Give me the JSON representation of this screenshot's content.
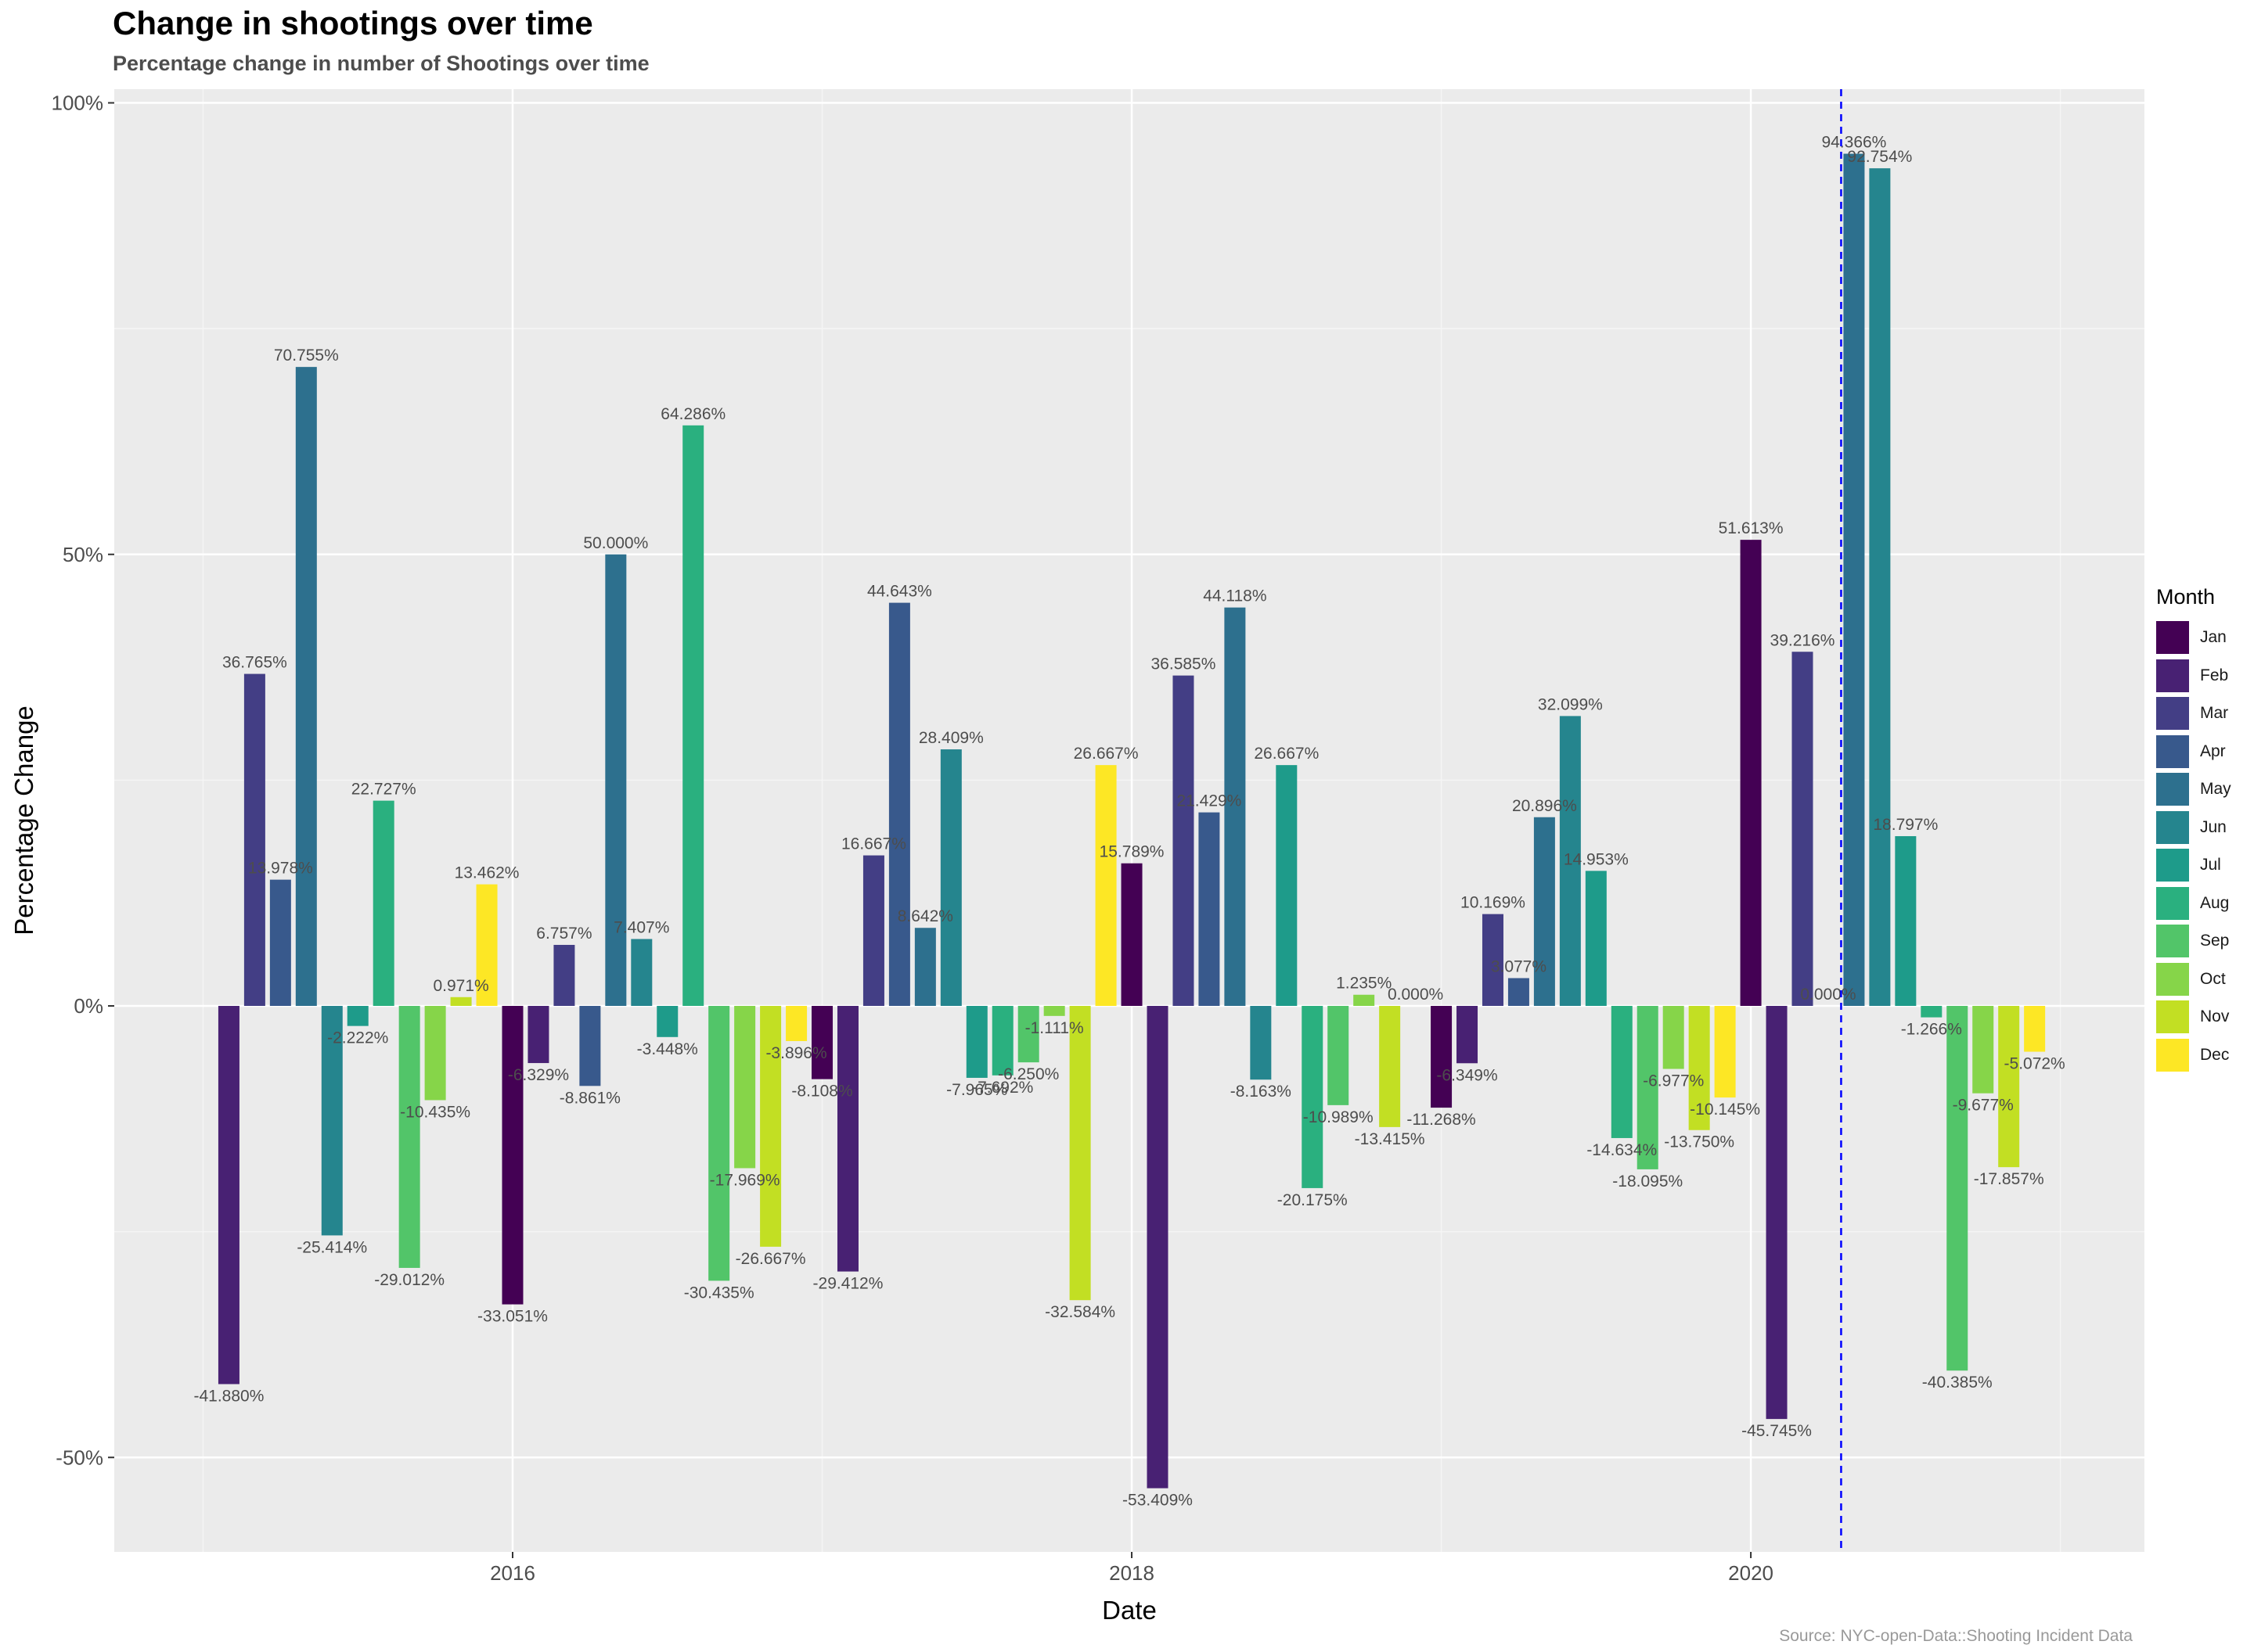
{
  "chart_data": {
    "type": "bar",
    "title": "Change in shootings over time",
    "subtitle": "Percentage change in number of Shootings over time",
    "xlabel": "Date",
    "ylabel": "Percentage Change",
    "caption": "Source: NYC-open-Data::Shooting Incident Data",
    "ylim": [
      -60,
      100
    ],
    "y_ticks": [
      {
        "value": 100,
        "label": "100%"
      },
      {
        "value": 50,
        "label": "50%"
      },
      {
        "value": 0,
        "label": "0%"
      },
      {
        "value": -50,
        "label": "-50%"
      }
    ],
    "x_ticks": [
      {
        "value": "2016-01",
        "label": "2016"
      },
      {
        "value": "2018-01",
        "label": "2018"
      },
      {
        "value": "2020-01",
        "label": "2020"
      }
    ],
    "reference_line": {
      "date": "2020-04",
      "color": "#0000ff",
      "style": "dashed"
    },
    "grid": true,
    "legend": {
      "title": "Month",
      "position": "right",
      "entries": [
        {
          "label": "Jan",
          "color": "#440154"
        },
        {
          "label": "Feb",
          "color": "#482173"
        },
        {
          "label": "Mar",
          "color": "#433e85"
        },
        {
          "label": "Apr",
          "color": "#38598c"
        },
        {
          "label": "May",
          "color": "#2d708e"
        },
        {
          "label": "Jun",
          "color": "#25858e"
        },
        {
          "label": "Jul",
          "color": "#1e9b8a"
        },
        {
          "label": "Aug",
          "color": "#2ab07f"
        },
        {
          "label": "Sep",
          "color": "#52c569"
        },
        {
          "label": "Oct",
          "color": "#86d549"
        },
        {
          "label": "Nov",
          "color": "#c2df23"
        },
        {
          "label": "Dec",
          "color": "#fde725"
        }
      ]
    },
    "data": [
      {
        "date": "2015-02",
        "month": 2,
        "value": -41.88,
        "label": "-41.880%"
      },
      {
        "date": "2015-03",
        "month": 3,
        "value": 36.765,
        "label": "36.765%"
      },
      {
        "date": "2015-04",
        "month": 4,
        "value": 13.978,
        "label": "13.978%"
      },
      {
        "date": "2015-05",
        "month": 5,
        "value": 70.755,
        "label": "70.755%"
      },
      {
        "date": "2015-06",
        "month": 6,
        "value": -25.414,
        "label": "-25.414%"
      },
      {
        "date": "2015-07",
        "month": 7,
        "value": -2.222,
        "label": "-2.222%"
      },
      {
        "date": "2015-08",
        "month": 8,
        "value": 22.727,
        "label": "22.727%"
      },
      {
        "date": "2015-09",
        "month": 9,
        "value": -29.012,
        "label": "-29.012%"
      },
      {
        "date": "2015-10",
        "month": 10,
        "value": -10.435,
        "label": "-10.435%"
      },
      {
        "date": "2015-11",
        "month": 11,
        "value": 0.971,
        "label": "0.971%"
      },
      {
        "date": "2015-12",
        "month": 12,
        "value": 13.462,
        "label": "13.462%"
      },
      {
        "date": "2016-01",
        "month": 1,
        "value": -33.051,
        "label": "-33.051%"
      },
      {
        "date": "2016-02",
        "month": 2,
        "value": -6.329,
        "label": "-6.329%"
      },
      {
        "date": "2016-03",
        "month": 3,
        "value": 6.757,
        "label": "6.757%"
      },
      {
        "date": "2016-04",
        "month": 4,
        "value": -8.861,
        "label": "-8.861%"
      },
      {
        "date": "2016-05",
        "month": 5,
        "value": 50.0,
        "label": "50.000%"
      },
      {
        "date": "2016-06",
        "month": 6,
        "value": 7.407,
        "label": "7.407%"
      },
      {
        "date": "2016-07",
        "month": 7,
        "value": -3.448,
        "label": "-3.448%"
      },
      {
        "date": "2016-08",
        "month": 8,
        "value": 64.286,
        "label": "64.286%"
      },
      {
        "date": "2016-09",
        "month": 9,
        "value": -30.435,
        "label": "-30.435%"
      },
      {
        "date": "2016-10",
        "month": 10,
        "value": -17.969,
        "label": "-17.969%"
      },
      {
        "date": "2016-11",
        "month": 11,
        "value": -26.667,
        "label": "-26.667%"
      },
      {
        "date": "2016-12",
        "month": 12,
        "value": -3.896,
        "label": "-3.896%"
      },
      {
        "date": "2017-01",
        "month": 1,
        "value": -8.108,
        "label": "-8.108%"
      },
      {
        "date": "2017-02",
        "month": 2,
        "value": -29.412,
        "label": "-29.412%"
      },
      {
        "date": "2017-03",
        "month": 3,
        "value": 16.667,
        "label": "16.667%"
      },
      {
        "date": "2017-04",
        "month": 4,
        "value": 44.643,
        "label": "44.643%"
      },
      {
        "date": "2017-05",
        "month": 5,
        "value": 8.642,
        "label": "8.642%"
      },
      {
        "date": "2017-06",
        "month": 6,
        "value": 28.409,
        "label": "28.409%"
      },
      {
        "date": "2017-07",
        "month": 7,
        "value": -7.965,
        "label": "-7.965%"
      },
      {
        "date": "2017-08",
        "month": 8,
        "value": -7.692,
        "label": "-7.692%"
      },
      {
        "date": "2017-09",
        "month": 9,
        "value": -6.25,
        "label": "-6.250%"
      },
      {
        "date": "2017-10",
        "month": 10,
        "value": -1.111,
        "label": "-1.111%"
      },
      {
        "date": "2017-11",
        "month": 11,
        "value": -32.584,
        "label": "-32.584%"
      },
      {
        "date": "2017-12",
        "month": 12,
        "value": 26.667,
        "label": "26.667%"
      },
      {
        "date": "2018-01",
        "month": 1,
        "value": 15.789,
        "label": "15.789%"
      },
      {
        "date": "2018-02",
        "month": 2,
        "value": -53.409,
        "label": "-53.409%"
      },
      {
        "date": "2018-03",
        "month": 3,
        "value": 36.585,
        "label": "36.585%"
      },
      {
        "date": "2018-04",
        "month": 4,
        "value": 21.429,
        "label": "21.429%"
      },
      {
        "date": "2018-05",
        "month": 5,
        "value": 44.118,
        "label": "44.118%"
      },
      {
        "date": "2018-06",
        "month": 6,
        "value": -8.163,
        "label": "-8.163%"
      },
      {
        "date": "2018-07",
        "month": 7,
        "value": 26.667,
        "label": "26.667%"
      },
      {
        "date": "2018-08",
        "month": 8,
        "value": -20.175,
        "label": "-20.175%"
      },
      {
        "date": "2018-09",
        "month": 9,
        "value": -10.989,
        "label": "-10.989%"
      },
      {
        "date": "2018-10",
        "month": 10,
        "value": 1.235,
        "label": "1.235%"
      },
      {
        "date": "2018-11",
        "month": 11,
        "value": -13.415,
        "label": "-13.415%"
      },
      {
        "date": "2018-12",
        "month": 12,
        "value": 0.0,
        "label": "0.000%"
      },
      {
        "date": "2019-01",
        "month": 1,
        "value": -11.268,
        "label": "-11.268%"
      },
      {
        "date": "2019-02",
        "month": 2,
        "value": -6.349,
        "label": "-6.349%"
      },
      {
        "date": "2019-03",
        "month": 3,
        "value": 10.169,
        "label": "10.169%"
      },
      {
        "date": "2019-04",
        "month": 4,
        "value": 3.077,
        "label": "3.077%"
      },
      {
        "date": "2019-05",
        "month": 5,
        "value": 20.896,
        "label": "20.896%"
      },
      {
        "date": "2019-06",
        "month": 6,
        "value": 32.099,
        "label": "32.099%"
      },
      {
        "date": "2019-07",
        "month": 7,
        "value": 14.953,
        "label": "14.953%"
      },
      {
        "date": "2019-08",
        "month": 8,
        "value": -14.634,
        "label": "-14.634%"
      },
      {
        "date": "2019-09",
        "month": 9,
        "value": -18.095,
        "label": "-18.095%"
      },
      {
        "date": "2019-10",
        "month": 10,
        "value": -6.977,
        "label": "-6.977%"
      },
      {
        "date": "2019-11",
        "month": 11,
        "value": -13.75,
        "label": "-13.750%"
      },
      {
        "date": "2019-12",
        "month": 12,
        "value": -10.145,
        "label": "-10.145%"
      },
      {
        "date": "2020-01",
        "month": 1,
        "value": 51.613,
        "label": "51.613%"
      },
      {
        "date": "2020-02",
        "month": 2,
        "value": -45.745,
        "label": "-45.745%"
      },
      {
        "date": "2020-03",
        "month": 3,
        "value": 39.216,
        "label": "39.216%"
      },
      {
        "date": "2020-04",
        "month": 4,
        "value": 0.0,
        "label": "0.000%"
      },
      {
        "date": "2020-05",
        "month": 5,
        "value": 94.366,
        "label": "94.366%"
      },
      {
        "date": "2020-06",
        "month": 6,
        "value": 92.754,
        "label": "92.754%"
      },
      {
        "date": "2020-07",
        "month": 7,
        "value": 18.797,
        "label": "18.797%"
      },
      {
        "date": "2020-08",
        "month": 8,
        "value": -1.266,
        "label": "-1.266%"
      },
      {
        "date": "2020-09",
        "month": 9,
        "value": -40.385,
        "label": "-40.385%"
      },
      {
        "date": "2020-10",
        "month": 10,
        "value": -9.677,
        "label": "-9.677%"
      },
      {
        "date": "2020-11",
        "month": 11,
        "value": -17.857,
        "label": "-17.857%"
      },
      {
        "date": "2020-12",
        "month": 12,
        "value": -5.072,
        "label": "-5.072%"
      }
    ]
  }
}
